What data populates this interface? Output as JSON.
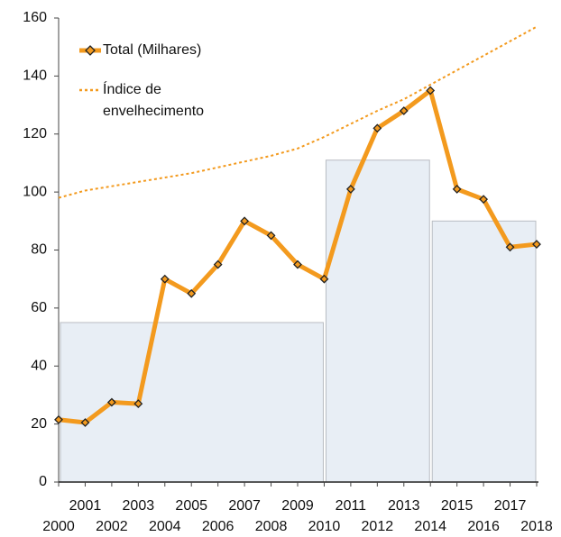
{
  "chart_data": {
    "type": "line",
    "x": [
      2000,
      2001,
      2002,
      2003,
      2004,
      2005,
      2006,
      2007,
      2008,
      2009,
      2010,
      2011,
      2012,
      2013,
      2014,
      2015,
      2016,
      2017,
      2018
    ],
    "xlim": [
      2000,
      2018
    ],
    "xticks": [
      2000,
      2001,
      2002,
      2003,
      2004,
      2005,
      2006,
      2007,
      2008,
      2009,
      2010,
      2011,
      2012,
      2013,
      2014,
      2015,
      2016,
      2017,
      2018
    ],
    "ylim": [
      0,
      160
    ],
    "yticks": [
      0,
      20,
      40,
      60,
      80,
      100,
      120,
      140,
      160
    ],
    "grid": false,
    "series": [
      {
        "name": "Total (Milhares)",
        "color": "#f39a1e",
        "marker": "diamond",
        "style": "solid",
        "values": [
          21.5,
          20.5,
          27.5,
          27,
          70,
          65,
          75,
          90,
          85,
          75,
          70,
          101,
          122,
          128,
          135,
          101,
          97.5,
          81,
          82
        ]
      },
      {
        "name": "Índice de envelhecimento",
        "color": "#f39a1e",
        "style": "dotted",
        "values": [
          98,
          100.5,
          102,
          103.5,
          105,
          106.5,
          108.5,
          110.5,
          112.5,
          115,
          119,
          123.5,
          128,
          132,
          137,
          142,
          147,
          152,
          157
        ]
      }
    ],
    "periods": [
      {
        "start": 2000,
        "end": 2010,
        "value": 55
      },
      {
        "start": 2010,
        "end": 2014,
        "value": 111
      },
      {
        "start": 2014,
        "end": 2018,
        "value": 90
      }
    ],
    "period_color": "#e8eef5"
  }
}
